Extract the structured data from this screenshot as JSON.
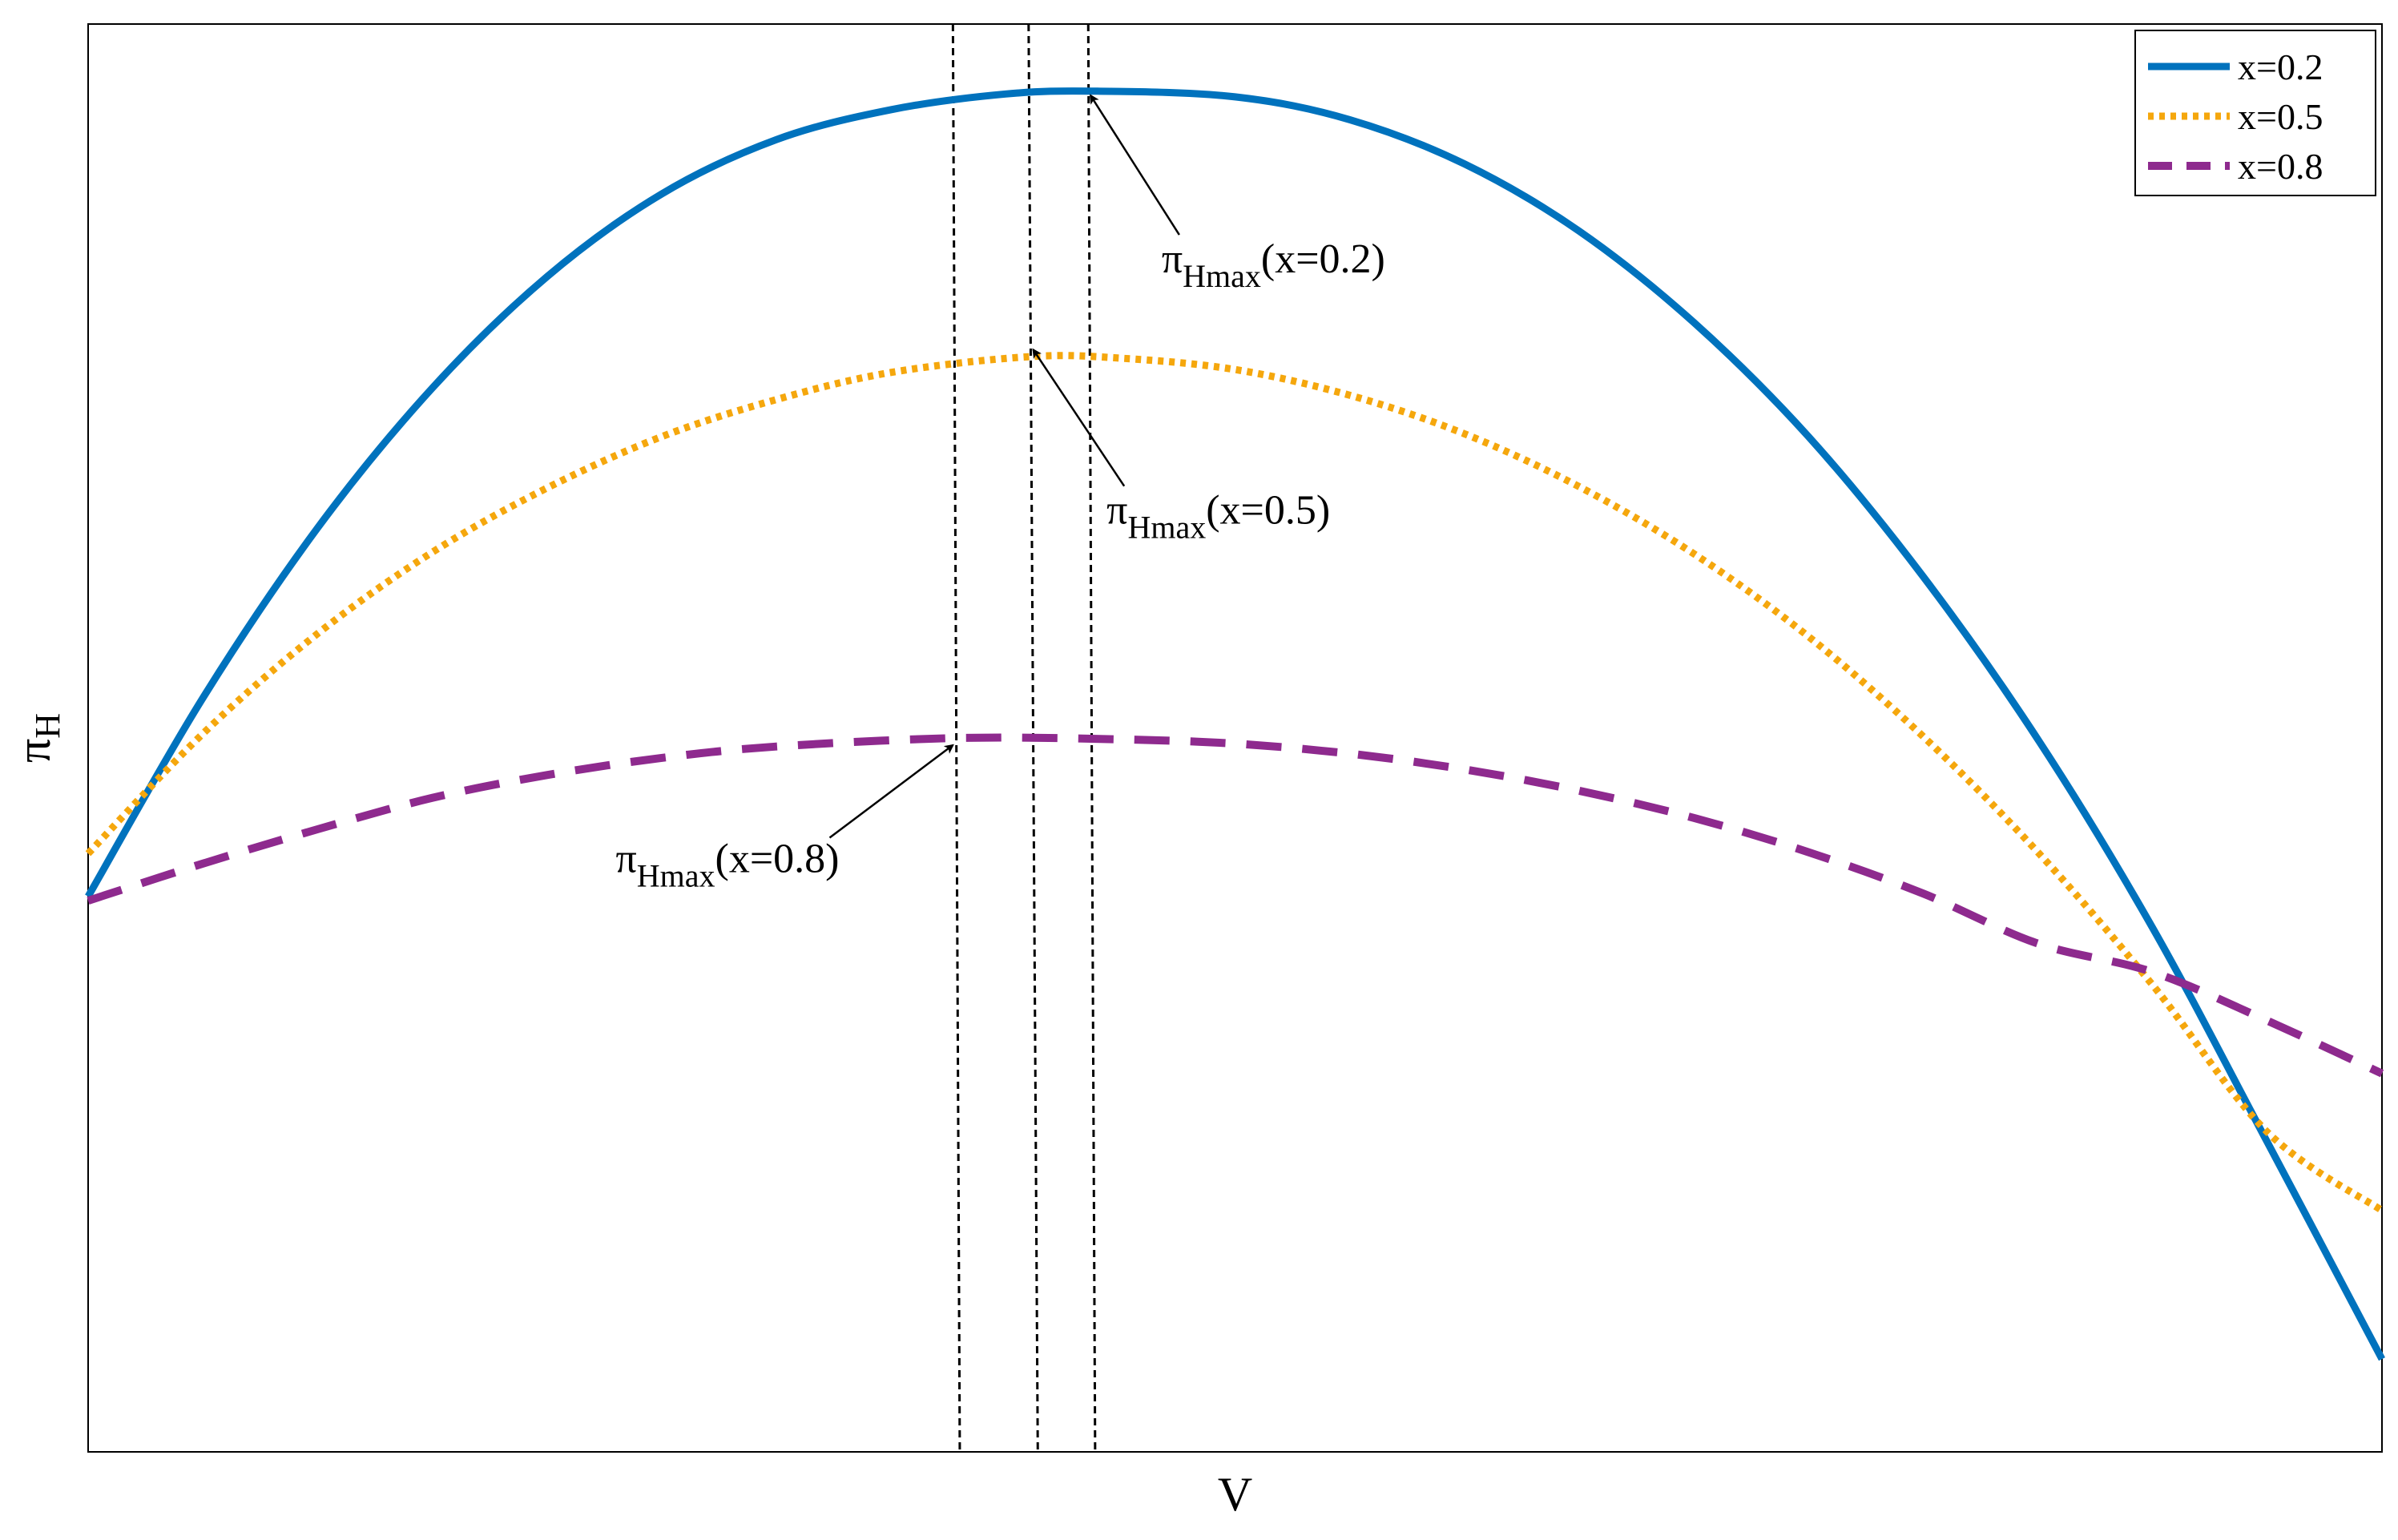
{
  "chart_data": {
    "type": "line",
    "title": "",
    "xlabel": "V",
    "ylabel_main": "π",
    "ylabel_sub": "H",
    "xlim": [
      0,
      1
    ],
    "ylim": [
      0,
      1
    ],
    "grid": false,
    "ticks_shown": false,
    "legend_position": "top-right",
    "series": [
      {
        "name": "x=0.2",
        "color": "#0072BD",
        "style": "solid",
        "x": [
          0,
          0.05,
          0.1,
          0.15,
          0.2,
          0.25,
          0.3,
          0.35,
          0.4,
          0.44,
          0.5,
          0.55,
          0.6,
          0.65,
          0.7,
          0.75,
          0.8,
          0.85,
          0.9,
          0.95,
          1.0
        ],
        "y": [
          0.389,
          0.528,
          0.647,
          0.745,
          0.823,
          0.881,
          0.919,
          0.94,
          0.951,
          0.953,
          0.949,
          0.933,
          0.902,
          0.855,
          0.791,
          0.711,
          0.613,
          0.499,
          0.367,
          0.217,
          0.065
        ]
      },
      {
        "name": "x=0.5",
        "color": "#F5A70D",
        "style": "dotted",
        "x": [
          0,
          0.05,
          0.1,
          0.15,
          0.2,
          0.25,
          0.3,
          0.35,
          0.41,
          0.45,
          0.5,
          0.55,
          0.6,
          0.65,
          0.7,
          0.75,
          0.8,
          0.85,
          0.9,
          0.95,
          1.0
        ],
        "y": [
          0.419,
          0.503,
          0.573,
          0.63,
          0.675,
          0.711,
          0.737,
          0.756,
          0.767,
          0.766,
          0.758,
          0.74,
          0.713,
          0.676,
          0.629,
          0.571,
          0.501,
          0.42,
          0.327,
          0.224,
          0.169
        ]
      },
      {
        "name": "x=0.8",
        "color": "#8E2A8E",
        "style": "dashed",
        "x": [
          0,
          0.05,
          0.1,
          0.15,
          0.2,
          0.25,
          0.3,
          0.38,
          0.45,
          0.5,
          0.55,
          0.6,
          0.65,
          0.7,
          0.75,
          0.8,
          0.85,
          0.9,
          0.95,
          1.0
        ],
        "y": [
          0.386,
          0.412,
          0.436,
          0.458,
          0.474,
          0.486,
          0.494,
          0.5,
          0.499,
          0.496,
          0.489,
          0.478,
          0.463,
          0.444,
          0.42,
          0.391,
          0.356,
          0.336,
          0.302,
          0.265
        ]
      }
    ],
    "reference_lines": [
      {
        "series": "x=0.8",
        "x_top": 0.377,
        "x_bottom": 0.38
      },
      {
        "series": "x=0.5",
        "x_top": 0.41,
        "x_bottom": 0.414
      },
      {
        "series": "x=0.2",
        "x_top": 0.436,
        "x_bottom": 0.439
      }
    ],
    "annotations": [
      {
        "series": "x=0.2",
        "main": "π",
        "sub": "Hmax",
        "suffix": "(x=0.2)",
        "point": [
          0.437,
          0.95
        ],
        "label_pos": [
          0.468,
          0.826
        ]
      },
      {
        "series": "x=0.5",
        "main": "π",
        "sub": "Hmax",
        "suffix": "(x=0.5)",
        "point": [
          0.412,
          0.772
        ],
        "label_pos": [
          0.444,
          0.65
        ]
      },
      {
        "series": "x=0.8",
        "main": "π",
        "sub": "Hmax",
        "suffix": "(x=0.8)",
        "point": [
          0.377,
          0.495
        ],
        "label_pos": [
          0.23,
          0.406
        ]
      }
    ]
  }
}
